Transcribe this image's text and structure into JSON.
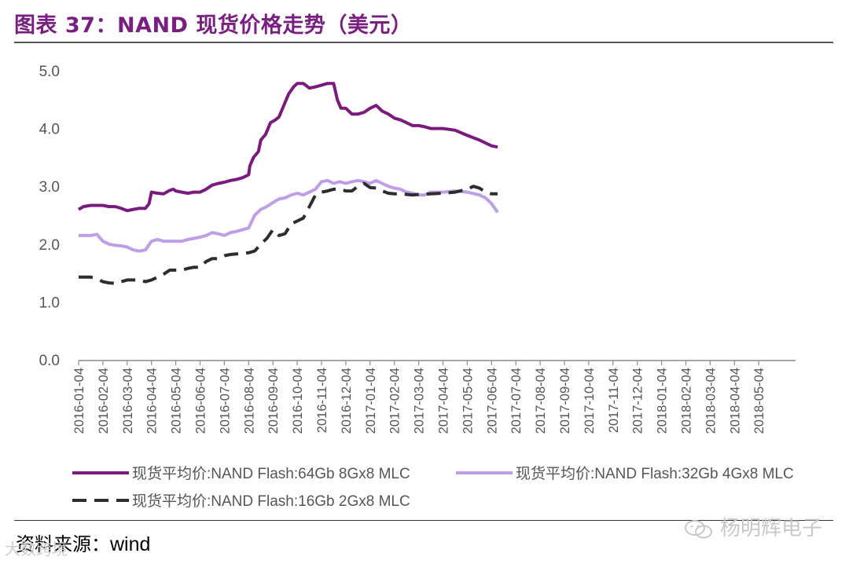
{
  "title": "图表 37：NAND 现货价格走势（美元）",
  "source_label": "资料来源：",
  "source_value": "wind",
  "watermark_right": "杨明辉电子",
  "watermark_left": "大数跨境",
  "chart_data": {
    "type": "line",
    "ylim": [
      0,
      5
    ],
    "yticks": [
      "0.0",
      "1.0",
      "2.0",
      "3.0",
      "4.0",
      "5.0"
    ],
    "categories": [
      "2016-01-04",
      "2016-02-04",
      "2016-03-04",
      "2016-04-04",
      "2016-05-04",
      "2016-06-04",
      "2016-07-04",
      "2016-08-04",
      "2016-09-04",
      "2016-10-04",
      "2016-11-04",
      "2016-12-04",
      "2017-01-04",
      "2017-02-04",
      "2017-03-04",
      "2017-04-04",
      "2017-05-04",
      "2017-06-04",
      "2017-07-04",
      "2017-08-04",
      "2017-09-04",
      "2017-10-04",
      "2017-11-04",
      "2017-12-04",
      "2018-01-04",
      "2018-02-04",
      "2018-03-04",
      "2018-04-04",
      "2018-05-04"
    ],
    "series": [
      {
        "name": "现货平均价:NAND Flash:64Gb 8Gx8 MLC",
        "color": "#7b1a7e",
        "style": "solid",
        "values": [
          [
            0,
            2.6
          ],
          [
            0.4,
            2.65
          ],
          [
            1,
            2.67
          ],
          [
            2,
            2.67
          ],
          [
            2.5,
            2.65
          ],
          [
            3,
            2.65
          ],
          [
            3.5,
            2.62
          ],
          [
            4,
            2.58
          ],
          [
            4.5,
            2.6
          ],
          [
            5,
            2.62
          ],
          [
            5.5,
            2.62
          ],
          [
            5.8,
            2.7
          ],
          [
            6,
            2.9
          ],
          [
            6.5,
            2.88
          ],
          [
            7,
            2.87
          ],
          [
            7.5,
            2.93
          ],
          [
            7.8,
            2.95
          ],
          [
            8,
            2.92
          ],
          [
            8.5,
            2.9
          ],
          [
            9,
            2.88
          ],
          [
            9.5,
            2.9
          ],
          [
            10,
            2.9
          ],
          [
            10.5,
            2.95
          ],
          [
            11,
            3.02
          ],
          [
            11.5,
            3.05
          ],
          [
            12,
            3.07
          ],
          [
            12.5,
            3.1
          ],
          [
            13,
            3.12
          ],
          [
            13.5,
            3.15
          ],
          [
            14,
            3.2
          ],
          [
            14.1,
            3.35
          ],
          [
            14.4,
            3.5
          ],
          [
            14.8,
            3.6
          ],
          [
            15,
            3.8
          ],
          [
            15.4,
            3.9
          ],
          [
            15.8,
            4.1
          ],
          [
            16.2,
            4.15
          ],
          [
            16.5,
            4.2
          ],
          [
            17,
            4.45
          ],
          [
            17.3,
            4.6
          ],
          [
            17.7,
            4.72
          ],
          [
            18,
            4.78
          ],
          [
            18.5,
            4.78
          ],
          [
            19,
            4.7
          ],
          [
            19.5,
            4.72
          ],
          [
            20,
            4.75
          ],
          [
            20.5,
            4.78
          ],
          [
            21,
            4.78
          ],
          [
            21.3,
            4.5
          ],
          [
            21.6,
            4.35
          ],
          [
            22,
            4.35
          ],
          [
            22.5,
            4.25
          ],
          [
            23,
            4.25
          ],
          [
            23.5,
            4.28
          ],
          [
            24,
            4.35
          ],
          [
            24.5,
            4.4
          ],
          [
            25,
            4.3
          ],
          [
            25.5,
            4.25
          ],
          [
            26,
            4.18
          ],
          [
            26.5,
            4.15
          ],
          [
            27,
            4.1
          ],
          [
            27.5,
            4.05
          ],
          [
            28,
            4.05
          ],
          [
            28.5,
            4.03
          ],
          [
            29,
            4.0
          ],
          [
            30,
            4.0
          ],
          [
            31,
            3.97
          ],
          [
            32,
            3.88
          ],
          [
            33,
            3.8
          ],
          [
            33.5,
            3.75
          ],
          [
            34,
            3.7
          ],
          [
            34.5,
            3.68
          ]
        ]
      },
      {
        "name": "现货平均价:NAND Flash:32Gb 4Gx8 MLC",
        "color": "#bf9ee8",
        "style": "solid",
        "values": [
          [
            0,
            2.15
          ],
          [
            0.5,
            2.15
          ],
          [
            1,
            2.15
          ],
          [
            1.5,
            2.17
          ],
          [
            2,
            2.05
          ],
          [
            2.5,
            2.0
          ],
          [
            3,
            1.98
          ],
          [
            3.5,
            1.97
          ],
          [
            4,
            1.95
          ],
          [
            4.5,
            1.9
          ],
          [
            5,
            1.88
          ],
          [
            5.5,
            1.9
          ],
          [
            6,
            2.05
          ],
          [
            6.5,
            2.08
          ],
          [
            7,
            2.05
          ],
          [
            7.5,
            2.05
          ],
          [
            8,
            2.05
          ],
          [
            8.5,
            2.05
          ],
          [
            9,
            2.08
          ],
          [
            9.5,
            2.1
          ],
          [
            10,
            2.12
          ],
          [
            10.5,
            2.15
          ],
          [
            11,
            2.2
          ],
          [
            11.5,
            2.18
          ],
          [
            12,
            2.15
          ],
          [
            12.5,
            2.2
          ],
          [
            13,
            2.22
          ],
          [
            13.5,
            2.25
          ],
          [
            14,
            2.28
          ],
          [
            14.5,
            2.5
          ],
          [
            15,
            2.6
          ],
          [
            15.5,
            2.65
          ],
          [
            16,
            2.72
          ],
          [
            16.5,
            2.78
          ],
          [
            17,
            2.8
          ],
          [
            17.5,
            2.85
          ],
          [
            18,
            2.88
          ],
          [
            18.5,
            2.85
          ],
          [
            19,
            2.9
          ],
          [
            19.5,
            2.95
          ],
          [
            20,
            3.08
          ],
          [
            20.5,
            3.1
          ],
          [
            21,
            3.05
          ],
          [
            21.5,
            3.08
          ],
          [
            22,
            3.05
          ],
          [
            22.5,
            3.08
          ],
          [
            23,
            3.1
          ],
          [
            23.5,
            3.08
          ],
          [
            24,
            3.05
          ],
          [
            24.5,
            3.1
          ],
          [
            25,
            3.05
          ],
          [
            25.5,
            3.0
          ],
          [
            26,
            2.97
          ],
          [
            26.5,
            2.95
          ],
          [
            27,
            2.9
          ],
          [
            27.5,
            2.88
          ],
          [
            28,
            2.85
          ],
          [
            28.5,
            2.85
          ],
          [
            29,
            2.9
          ],
          [
            30,
            2.9
          ],
          [
            31,
            2.92
          ],
          [
            32,
            2.9
          ],
          [
            33,
            2.85
          ],
          [
            33.5,
            2.8
          ],
          [
            34,
            2.7
          ],
          [
            34.5,
            2.55
          ]
        ]
      },
      {
        "name": "现货平均价:NAND Flash:16Gb 2Gx8 MLC",
        "color": "#2d2d2d",
        "style": "dashed",
        "values": [
          [
            0,
            1.43
          ],
          [
            1,
            1.43
          ],
          [
            1.5,
            1.4
          ],
          [
            2,
            1.35
          ],
          [
            2.5,
            1.33
          ],
          [
            3,
            1.32
          ],
          [
            3.5,
            1.35
          ],
          [
            4,
            1.38
          ],
          [
            4.5,
            1.38
          ],
          [
            5,
            1.38
          ],
          [
            5.5,
            1.35
          ],
          [
            6,
            1.38
          ],
          [
            6.5,
            1.43
          ],
          [
            7,
            1.48
          ],
          [
            7.5,
            1.55
          ],
          [
            8,
            1.55
          ],
          [
            8.5,
            1.55
          ],
          [
            9,
            1.58
          ],
          [
            9.5,
            1.6
          ],
          [
            10,
            1.6
          ],
          [
            10.5,
            1.7
          ],
          [
            11,
            1.75
          ],
          [
            11.5,
            1.75
          ],
          [
            12,
            1.8
          ],
          [
            12.5,
            1.82
          ],
          [
            13,
            1.83
          ],
          [
            13.5,
            1.84
          ],
          [
            14,
            1.85
          ],
          [
            14.5,
            1.88
          ],
          [
            15,
            2.0
          ],
          [
            15.5,
            2.1
          ],
          [
            16,
            2.25
          ],
          [
            16.5,
            2.15
          ],
          [
            17,
            2.18
          ],
          [
            17.5,
            2.35
          ],
          [
            18,
            2.4
          ],
          [
            18.5,
            2.45
          ],
          [
            19,
            2.65
          ],
          [
            19.5,
            2.85
          ],
          [
            20,
            2.9
          ],
          [
            20.5,
            2.92
          ],
          [
            21,
            2.95
          ],
          [
            21.5,
            2.95
          ],
          [
            22,
            2.92
          ],
          [
            22.5,
            2.92
          ],
          [
            23,
            3.0
          ],
          [
            23.5,
            3.05
          ],
          [
            24,
            2.98
          ],
          [
            24.5,
            2.97
          ],
          [
            25,
            2.92
          ],
          [
            25.5,
            2.88
          ],
          [
            26,
            2.87
          ],
          [
            26.5,
            2.87
          ],
          [
            27,
            2.86
          ],
          [
            27.5,
            2.85
          ],
          [
            28,
            2.86
          ],
          [
            29,
            2.87
          ],
          [
            30,
            2.88
          ],
          [
            31,
            2.9
          ],
          [
            32,
            2.95
          ],
          [
            32.5,
            3.0
          ],
          [
            33,
            2.97
          ],
          [
            33.5,
            2.9
          ],
          [
            34,
            2.87
          ],
          [
            34.5,
            2.87
          ]
        ]
      }
    ]
  }
}
